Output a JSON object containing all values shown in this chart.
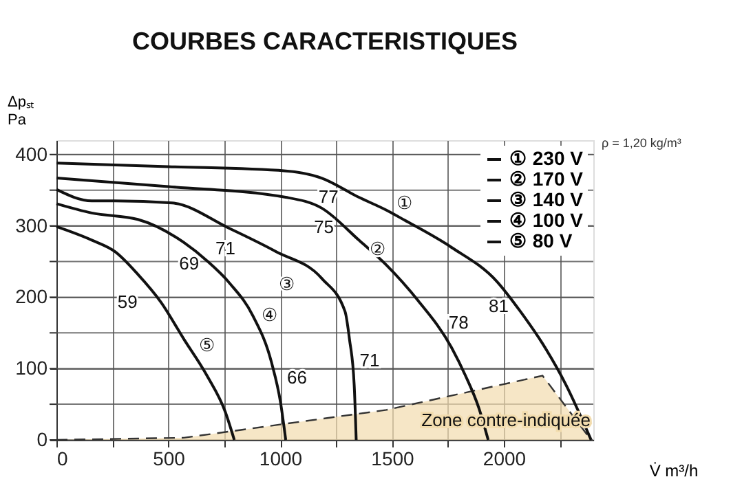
{
  "chart_data": {
    "type": "line",
    "title": "COURBES CARACTERISTIQUES",
    "xlabel": "V̇ m³/h",
    "ylabel": "Δpₛₜ\nPa",
    "xlim": [
      0,
      2400
    ],
    "ylim": [
      0,
      420
    ],
    "xticks": [
      0,
      {
        "value": 250,
        "label": null
      },
      500,
      {
        "value": 750,
        "label": null
      },
      1000,
      {
        "value": 1250,
        "label": null
      },
      1500,
      {
        "value": 1750,
        "label": null
      },
      2000,
      {
        "value": 2250,
        "label": null
      }
    ],
    "yticks": [
      0,
      {
        "value": 50,
        "label": null
      },
      100,
      {
        "value": 150,
        "label": null
      },
      200,
      {
        "value": 250,
        "label": null
      },
      300,
      {
        "value": 350,
        "label": null
      },
      400
    ],
    "grid": true,
    "legend": "top right",
    "series": [
      {
        "type": "area",
        "color": "#f2dcae",
        "line_style": "dashed",
        "x": [
          0,
          570,
          1475,
          2173,
          2390
        ],
        "values": [
          0,
          3,
          42,
          90,
          0
        ]
      },
      {
        "name": "① 230 V",
        "color": "#111111",
        "x": [
          0,
          500,
          1025,
          1185,
          1352,
          1475,
          1556,
          1765,
          1969,
          2074,
          2173,
          2278,
          2390
        ],
        "values": [
          388,
          383,
          377,
          367,
          340,
          322,
          308,
          270,
          222,
          180,
          135,
          77,
          0
        ]
      },
      {
        "name": "② 170 V",
        "color": "#111111",
        "x": [
          0,
          500,
          1025,
          1185,
          1352,
          1475,
          1617,
          1765,
          1827,
          1889,
          1930
        ],
        "values": [
          367,
          355,
          340,
          325,
          280,
          245,
          195,
          130,
          91,
          44,
          0
        ]
      },
      {
        "name": "③ 140 V",
        "color": "#111111",
        "x": [
          0,
          158,
          260,
          517,
          776,
          981,
          1187,
          1290,
          1310,
          1331,
          1340
        ],
        "values": [
          351,
          335,
          335,
          332,
          296,
          264,
          226,
          180,
          141,
          77,
          0
        ]
      },
      {
        "name": "④ 100 V",
        "color": "#111111",
        "x": [
          0,
          158,
          364,
          568,
          673,
          776,
          878,
          961,
          1002,
          1025
        ],
        "values": [
          331,
          318,
          309,
          277,
          251,
          219,
          174,
          109,
          52,
          0
        ]
      },
      {
        "name": "⑤ 80 V",
        "color": "#111111",
        "x": [
          0,
          158,
          261,
          364,
          467,
          570,
          673,
          755,
          795
        ],
        "values": [
          299,
          280,
          264,
          232,
          193,
          141,
          90,
          39,
          0
        ]
      }
    ],
    "annotations": [
      {
        "text": "77",
        "x": 1216,
        "y": 363
      },
      {
        "text": "75",
        "x": 1208,
        "y": 321
      },
      {
        "text": "71",
        "x": 817,
        "y": 291
      },
      {
        "text": "69",
        "x": 704,
        "y": 243
      },
      {
        "text": "59",
        "x": 416,
        "y": 212
      },
      {
        "text": "71",
        "x": 1320,
        "y": 111
      },
      {
        "text": "66",
        "x": 977,
        "y": 87
      },
      {
        "text": "78",
        "x": 1699,
        "y": 164
      },
      {
        "text": "81",
        "x": 2057,
        "y": 187
      },
      {
        "text": "①",
        "x": 1556,
        "y": 308
      },
      {
        "text": "②",
        "x": 1352,
        "y": 280
      },
      {
        "text": "③",
        "x": 1105,
        "y": 241
      },
      {
        "text": "④",
        "x": 868,
        "y": 178
      },
      {
        "text": "⑤",
        "x": 588,
        "y": 132
      },
      "Zone contre-indiquée",
      "ρ = 1,20 kg/m³"
    ]
  }
}
